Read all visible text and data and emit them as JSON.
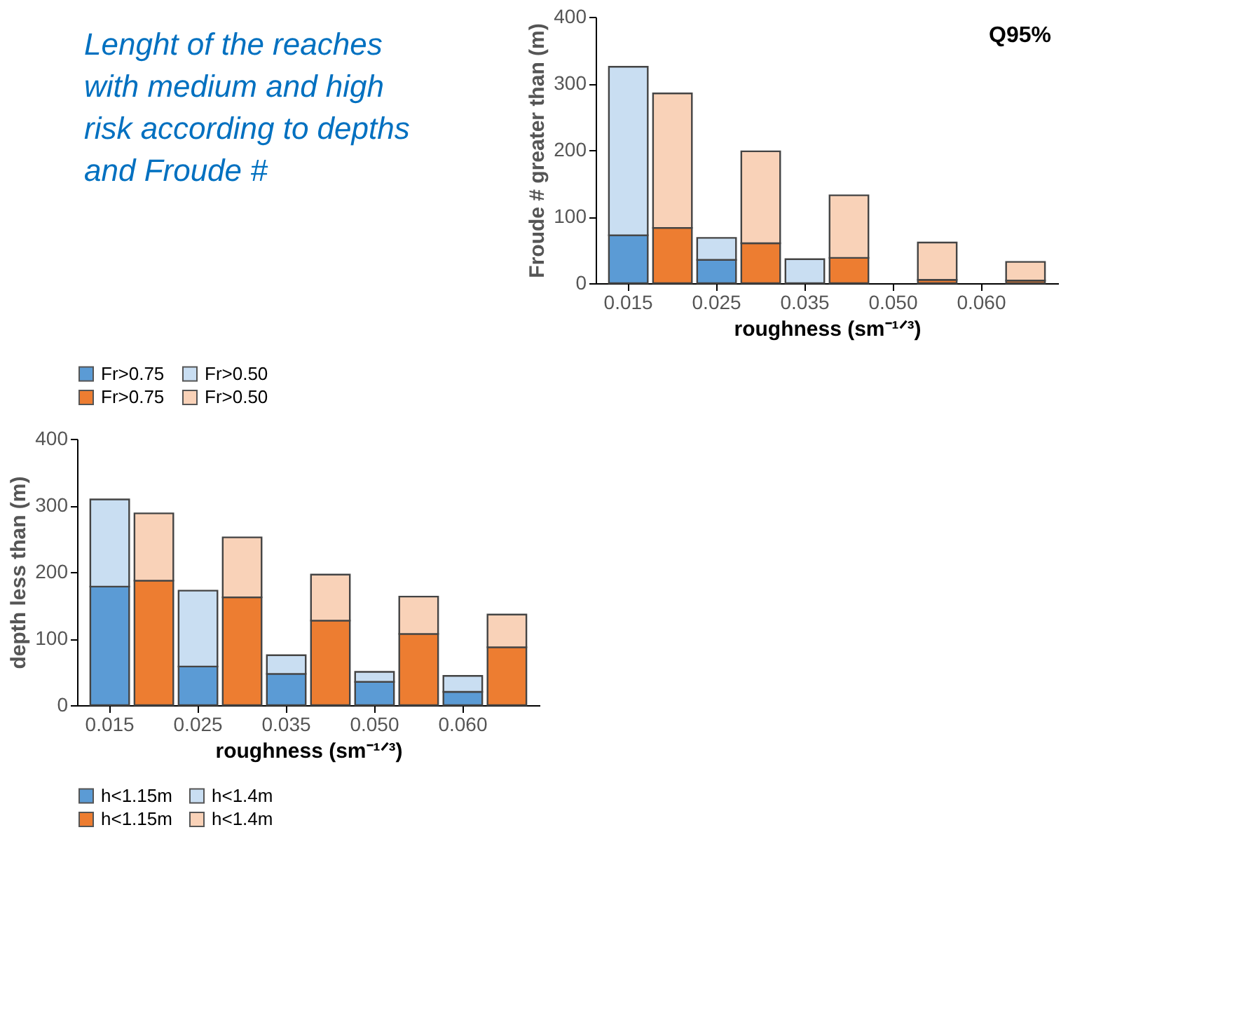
{
  "chart_data": [
    {
      "type": "bar",
      "stacked": true,
      "annotations": [
        "Lenght of the reaches with medium and high risk according to depths and Froude #",
        "Q95%"
      ],
      "ylabel": "Froude # greater than (m)",
      "xlabel": "roughness  (sm⁻¹ᐟ³)",
      "categories": [
        "0.015",
        null,
        "0.025",
        null,
        "0.035",
        null,
        "0.050",
        null,
        "0.060",
        null
      ],
      "ylim": [
        0,
        400
      ],
      "yticks": [
        0,
        100,
        200,
        300,
        400
      ],
      "grid": false,
      "legend": "bottom",
      "series": [
        {
          "name": "Fr>0.75",
          "color": "#5b9bd5",
          "values": [
            72,
            null,
            35,
            null,
            null,
            null,
            null,
            null,
            null,
            null
          ]
        },
        {
          "name": "Fr>0.50",
          "color": "#c9def2",
          "values": [
            253,
            null,
            33,
            null,
            36,
            null,
            null,
            null,
            null,
            null
          ]
        },
        {
          "name": "Fr>0.75",
          "color": "#ed7d31",
          "values": [
            null,
            83,
            null,
            60,
            null,
            38,
            null,
            5,
            null,
            4
          ]
        },
        {
          "name": "Fr>0.50",
          "color": "#f9d2b8",
          "values": [
            null,
            202,
            null,
            138,
            null,
            94,
            null,
            56,
            null,
            28
          ]
        }
      ]
    },
    {
      "type": "bar",
      "stacked": true,
      "ylabel": "depth less than (m)",
      "xlabel": "roughness  (sm⁻¹ᐟ³)",
      "categories": [
        "0.015",
        null,
        "0.025",
        null,
        "0.035",
        null,
        "0.050",
        null,
        "0.060",
        null
      ],
      "ylim": [
        0,
        400
      ],
      "yticks": [
        0,
        100,
        200,
        300,
        400
      ],
      "grid": false,
      "legend": "bottom",
      "series": [
        {
          "name": "h<1.15m",
          "color": "#5b9bd5",
          "values": [
            178,
            null,
            58,
            null,
            47,
            null,
            35,
            null,
            20,
            null
          ]
        },
        {
          "name": "h<1.4m",
          "color": "#c9def2",
          "values": [
            131,
            null,
            114,
            null,
            28,
            null,
            15,
            null,
            24,
            null
          ]
        },
        {
          "name": "h<1.15m",
          "color": "#ed7d31",
          "values": [
            null,
            187,
            null,
            162,
            null,
            127,
            null,
            107,
            null,
            87
          ]
        },
        {
          "name": "h<1.4m",
          "color": "#f9d2b8",
          "values": [
            null,
            101,
            null,
            90,
            null,
            69,
            null,
            56,
            null,
            49
          ]
        }
      ]
    }
  ]
}
